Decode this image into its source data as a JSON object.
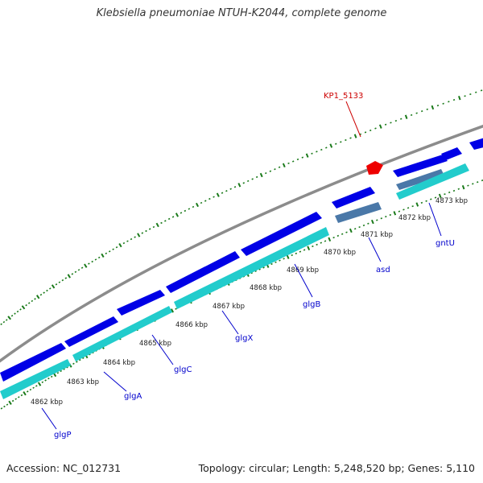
{
  "title": "Klebsiella pneumoniae NTUH-K2044, complete genome",
  "footer": {
    "accession": "Accession: NC_012731",
    "summary": "Topology: circular; Length: 5,248,520 bp; Genes: 5,110"
  },
  "colors": {
    "backbone": "#8c8c8c",
    "forward_gene": "#0000e6",
    "reverse_gene": "#22cccc",
    "reverse_gene_alt": "#4a78a8",
    "highlight_gene": "#ee0000",
    "tick": "#1a7a1a",
    "gene_label": "#0000cc",
    "highlight_label": "#cc0000"
  },
  "scale_labels": [
    "4862 kbp",
    "4863 kbp",
    "4864 kbp",
    "4865 kbp",
    "4866 kbp",
    "4867 kbp",
    "4868 kbp",
    "4869 kbp",
    "4870 kbp",
    "4871 kbp",
    "4872 kbp",
    "4873 kbp"
  ],
  "gene_labels": [
    "glgP",
    "glgA",
    "glgC",
    "glgX",
    "glgB",
    "asd",
    "gntU"
  ],
  "highlight_label": "KP1_5133"
}
